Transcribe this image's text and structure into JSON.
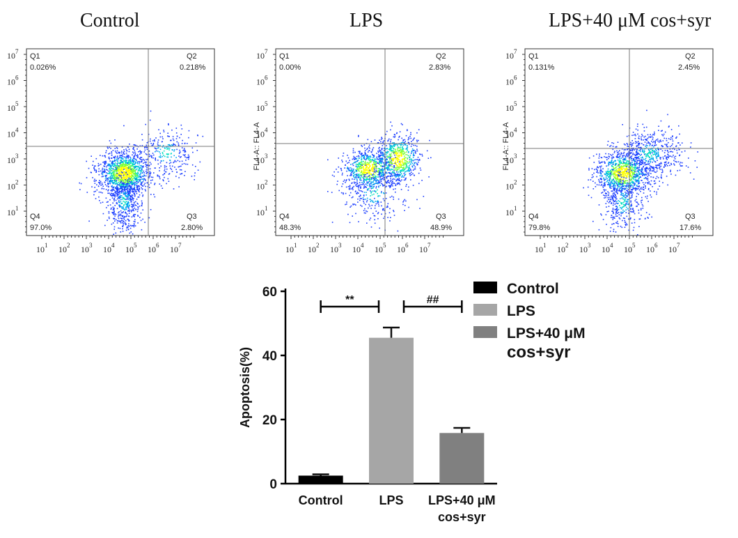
{
  "flow_panels": [
    {
      "title": "Control",
      "ylabel": "",
      "quadrants": {
        "q1": {
          "name": "Q1",
          "value": "0.026%"
        },
        "q2": {
          "name": "Q2",
          "value": "0.218%"
        },
        "q3": {
          "name": "Q3",
          "value": "2.80%"
        },
        "q4": {
          "name": "Q4",
          "value": "97.0%"
        }
      }
    },
    {
      "title": "LPS",
      "ylabel": "FL4-A:: FL4-A",
      "quadrants": {
        "q1": {
          "name": "Q1",
          "value": "0.00%"
        },
        "q2": {
          "name": "Q2",
          "value": "2.83%"
        },
        "q3": {
          "name": "Q3",
          "value": "48.9%"
        },
        "q4": {
          "name": "Q4",
          "value": "48.3%"
        }
      }
    },
    {
      "title": "LPS+40 μM cos+syr",
      "ylabel": "FL4-A:: FL4-A",
      "quadrants": {
        "q1": {
          "name": "Q1",
          "value": "0.131%"
        },
        "q2": {
          "name": "Q2",
          "value": "2.45%"
        },
        "q3": {
          "name": "Q3",
          "value": "17.6%"
        },
        "q4": {
          "name": "Q4",
          "value": "79.8%"
        }
      }
    }
  ],
  "flow_axis": {
    "y_ticks": [
      {
        "base": "10",
        "exp": "7"
      },
      {
        "base": "10",
        "exp": "6"
      },
      {
        "base": "10",
        "exp": "5"
      },
      {
        "base": "10",
        "exp": "4"
      },
      {
        "base": "10",
        "exp": "3"
      },
      {
        "base": "10",
        "exp": "2"
      },
      {
        "base": "10",
        "exp": "1"
      }
    ],
    "x_ticks": [
      {
        "base": "10",
        "exp": "1"
      },
      {
        "base": "10",
        "exp": "2"
      },
      {
        "base": "10",
        "exp": "3"
      },
      {
        "base": "10",
        "exp": "4"
      },
      {
        "base": "10",
        "exp": "5"
      },
      {
        "base": "10",
        "exp": "6"
      },
      {
        "base": "10",
        "exp": "7"
      }
    ]
  },
  "chart_data": {
    "type": "bar",
    "ylabel": "Apoptosis(%)",
    "xlabel": "",
    "ylim": [
      0,
      60
    ],
    "yticks": [
      0,
      20,
      40,
      60
    ],
    "categories": [
      "Control",
      "LPS",
      "LPS+40 μM\ncos+syr"
    ],
    "values": [
      2.5,
      45.5,
      15.8
    ],
    "errors": [
      0.4,
      3.2,
      1.6
    ],
    "colors": [
      "#000000",
      "#a6a6a6",
      "#808080"
    ],
    "significance": [
      {
        "label": "**",
        "between": [
          0,
          1
        ]
      },
      {
        "label": "##",
        "between": [
          1,
          2
        ]
      }
    ],
    "legend": {
      "position": "right",
      "entries": [
        {
          "label": "Control",
          "color": "#000000"
        },
        {
          "label": "LPS",
          "color": "#a6a6a6"
        },
        {
          "label": "LPS+40 μM\ncos+syr",
          "color": "#808080"
        }
      ]
    }
  }
}
